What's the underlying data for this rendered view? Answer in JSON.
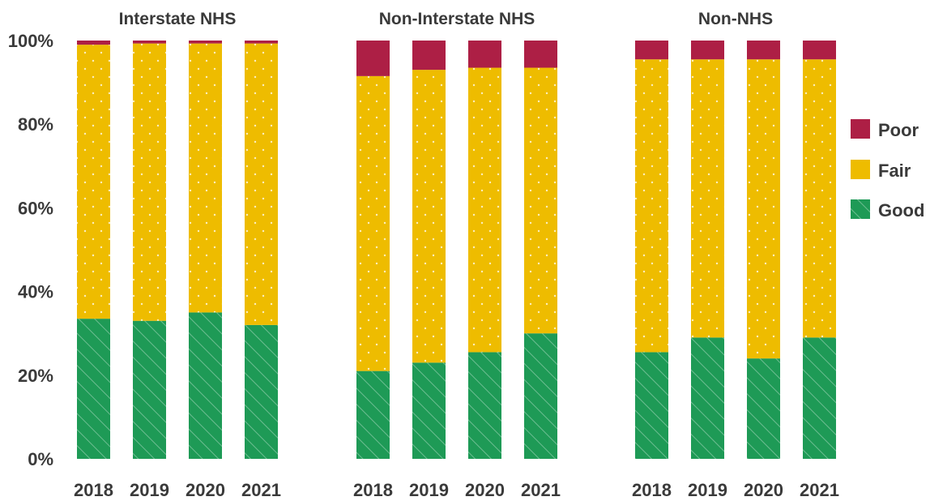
{
  "chart_data": {
    "type": "bar",
    "stacked": true,
    "y_axis": {
      "ylim": [
        0,
        100
      ],
      "ticks": [
        "0%",
        "20%",
        "40%",
        "60%",
        "80%",
        "100%"
      ]
    },
    "categories": [
      "2018",
      "2019",
      "2020",
      "2021"
    ],
    "legend": {
      "position": "right",
      "order": [
        "Poor",
        "Fair",
        "Good"
      ]
    },
    "colors": {
      "Good": "#1e9a56",
      "Fair": "#eebc00",
      "Poor": "#ad1f45"
    },
    "panels": [
      {
        "title": "Interstate NHS",
        "series": [
          {
            "name": "Good",
            "values": [
              33.5,
              33.0,
              35.0,
              32.0
            ]
          },
          {
            "name": "Fair",
            "values": [
              65.5,
              66.3,
              64.3,
              67.3
            ]
          },
          {
            "name": "Poor",
            "values": [
              1.0,
              0.7,
              0.7,
              0.7
            ]
          }
        ]
      },
      {
        "title": "Non-Interstate NHS",
        "series": [
          {
            "name": "Good",
            "values": [
              21.0,
              23.0,
              25.5,
              30.0
            ]
          },
          {
            "name": "Fair",
            "values": [
              70.5,
              70.0,
              68.0,
              63.5
            ]
          },
          {
            "name": "Poor",
            "values": [
              8.5,
              7.0,
              6.5,
              6.5
            ]
          }
        ]
      },
      {
        "title": "Non-NHS",
        "series": [
          {
            "name": "Good",
            "values": [
              25.5,
              29.0,
              24.0,
              29.0
            ]
          },
          {
            "name": "Fair",
            "values": [
              70.0,
              66.5,
              71.5,
              66.5
            ]
          },
          {
            "name": "Poor",
            "values": [
              4.5,
              4.5,
              4.5,
              4.5
            ]
          }
        ]
      }
    ]
  }
}
